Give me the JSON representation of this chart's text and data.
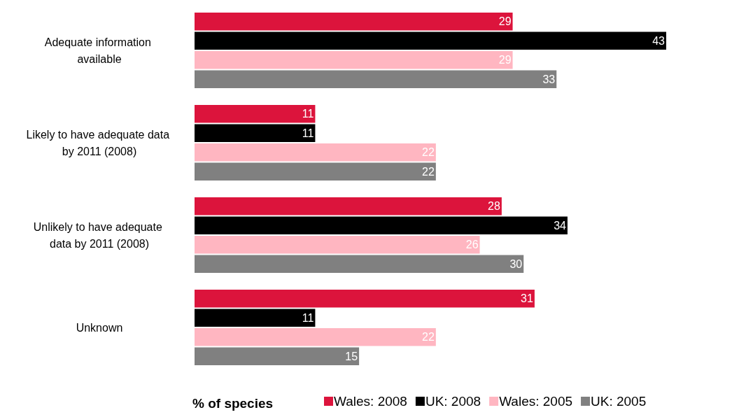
{
  "chart_data": {
    "type": "bar",
    "orientation": "horizontal",
    "xlabel": "% of species",
    "categories": [
      "Adequate information available",
      "Likely to have adequate data by 2011 (2008)",
      "Unlikely to have adequate data by 2011 (2008)",
      "Unknown"
    ],
    "series": [
      {
        "name": "Wales: 2008",
        "color": "#dc143c",
        "values": [
          29,
          11,
          28,
          31
        ]
      },
      {
        "name": "UK: 2008",
        "color": "#000000",
        "values": [
          43,
          11,
          34,
          11
        ]
      },
      {
        "name": "Wales: 2005",
        "color": "#ffb6c1",
        "values": [
          29,
          22,
          26,
          22
        ]
      },
      {
        "name": "UK: 2005",
        "color": "#808080",
        "values": [
          33,
          22,
          30,
          15
        ]
      }
    ],
    "data_labels": true,
    "legend": "bottom"
  }
}
